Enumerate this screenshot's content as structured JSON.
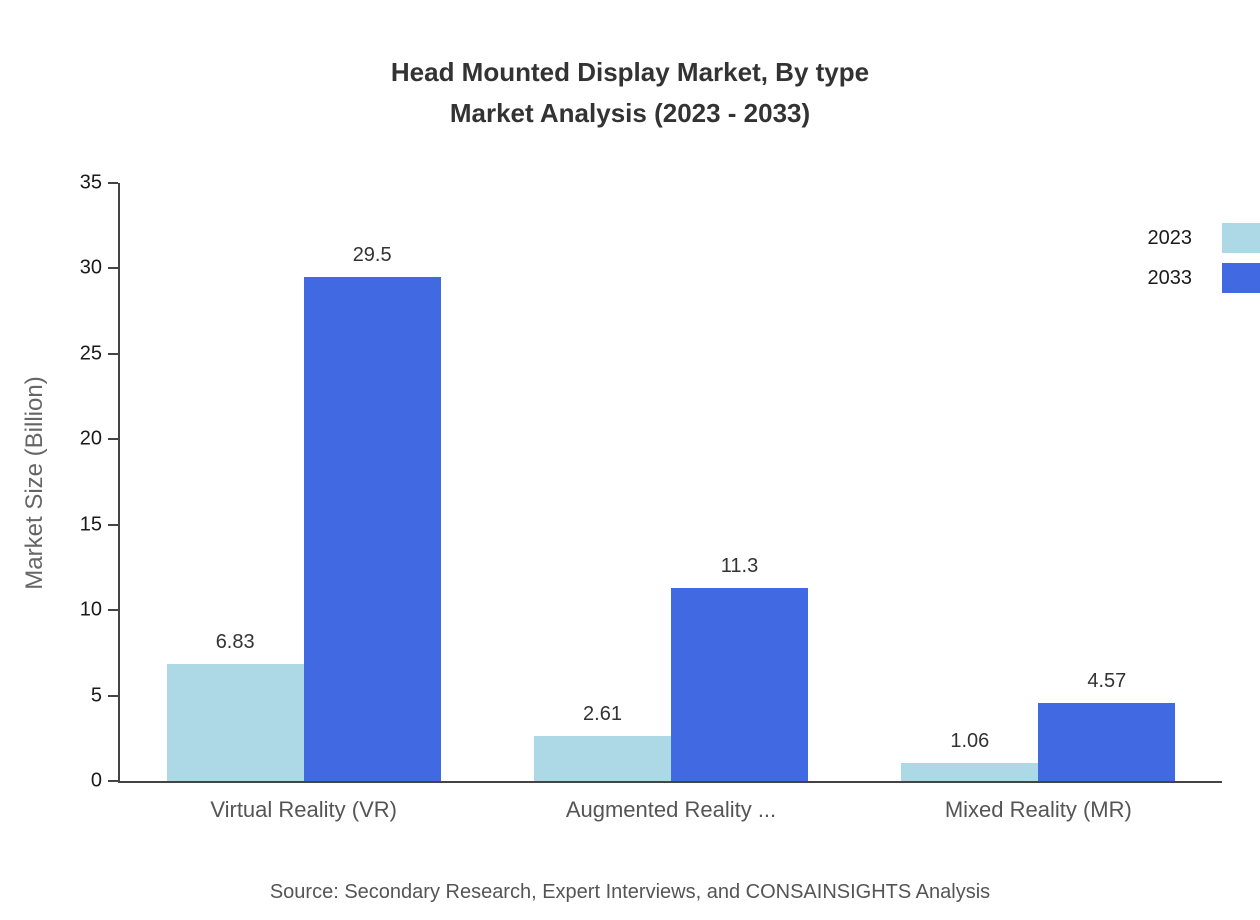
{
  "title": {
    "line1": "Head Mounted Display Market, By type",
    "line2": "Market Analysis (2023 - 2033)"
  },
  "source": "Source: Secondary Research, Expert Interviews, and CONSAINSIGHTS Analysis",
  "chart_data": {
    "type": "bar",
    "title": "Head Mounted Display Market, By type Market Analysis (2023 - 2033)",
    "categories": [
      "Virtual Reality (VR)",
      "Augmented Reality ...",
      "Mixed Reality (MR)"
    ],
    "series": [
      {
        "name": "2023",
        "color": "#ADD8E6",
        "values": [
          6.83,
          2.61,
          1.06
        ]
      },
      {
        "name": "2033",
        "color": "#4169E1",
        "values": [
          29.5,
          11.3,
          4.57
        ]
      }
    ],
    "value_labels": {
      "2023": [
        "6.83",
        "2.61",
        "1.06"
      ],
      "2033": [
        "29.5",
        "11.3",
        "4.57"
      ]
    },
    "xlabel": "",
    "ylabel": "Market Size (Billion)",
    "ylim": [
      0,
      35
    ],
    "ytick_step": 5,
    "grid": false,
    "legend_position": "top-right"
  }
}
